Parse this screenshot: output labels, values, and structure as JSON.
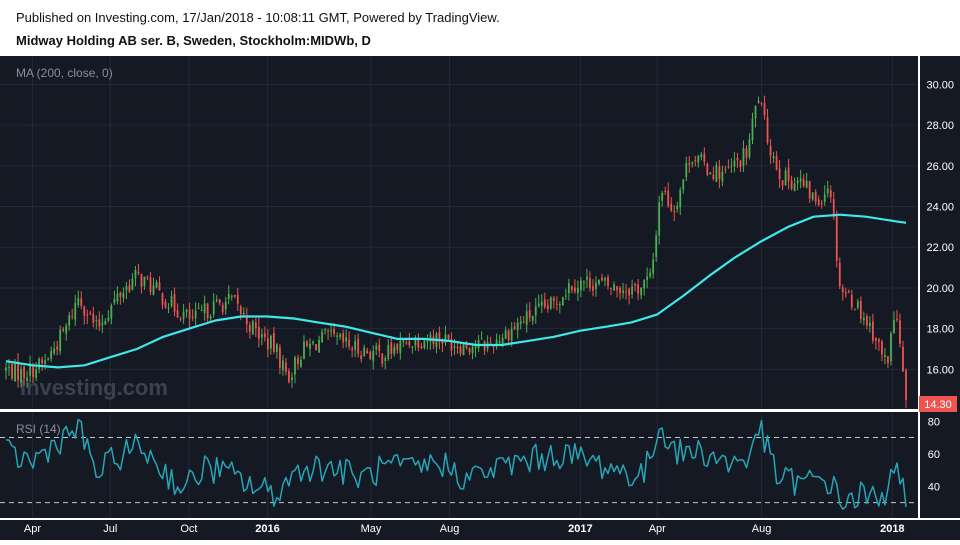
{
  "header": {
    "published": "Published on Investing.com, 17/Jan/2018 - 10:08:11 GMT, Powered by TradingView.",
    "symbol": "Midway Holding AB ser. B, Sweden, Stockholm:MIDWb, D"
  },
  "watermark": "Investing.com",
  "chart_data": [
    {
      "type": "candlestick",
      "indicator_label": "MA (200, close, 0)",
      "y_ticks": [
        16.0,
        18.0,
        20.0,
        22.0,
        24.0,
        26.0,
        28.0,
        30.0
      ],
      "ylim": [
        14.3,
        31.0
      ],
      "last_price": "14.30",
      "colors": {
        "up": "#4caf50",
        "down": "#ef5350",
        "ma": "#3ee7e8",
        "last_price_bg": "#ef5350",
        "background": "#151924"
      },
      "anchors": [
        {
          "date": "2015-03-01",
          "close": 16.0
        },
        {
          "date": "2015-03-20",
          "close": 15.8
        },
        {
          "date": "2015-04-15",
          "close": 16.3
        },
        {
          "date": "2015-05-10",
          "close": 18.0
        },
        {
          "date": "2015-05-25",
          "close": 19.6
        },
        {
          "date": "2015-06-15",
          "close": 18.0
        },
        {
          "date": "2015-07-10",
          "close": 19.6
        },
        {
          "date": "2015-08-01",
          "close": 20.6
        },
        {
          "date": "2015-08-20",
          "close": 20.0
        },
        {
          "date": "2015-09-15",
          "close": 19.0
        },
        {
          "date": "2015-10-05",
          "close": 18.4
        },
        {
          "date": "2015-10-25",
          "close": 19.0
        },
        {
          "date": "2015-11-20",
          "close": 19.4
        },
        {
          "date": "2015-12-15",
          "close": 18.0
        },
        {
          "date": "2016-01-10",
          "close": 17.0
        },
        {
          "date": "2016-01-25",
          "close": 15.6
        },
        {
          "date": "2016-02-10",
          "close": 16.9
        },
        {
          "date": "2016-03-10",
          "close": 17.6
        },
        {
          "date": "2016-04-15",
          "close": 17.0
        },
        {
          "date": "2016-05-15",
          "close": 16.7
        },
        {
          "date": "2016-06-15",
          "close": 17.4
        },
        {
          "date": "2016-07-15",
          "close": 17.6
        },
        {
          "date": "2016-08-15",
          "close": 17.2
        },
        {
          "date": "2016-09-15",
          "close": 17.2
        },
        {
          "date": "2016-10-10",
          "close": 17.9
        },
        {
          "date": "2016-11-05",
          "close": 18.7
        },
        {
          "date": "2016-12-01",
          "close": 19.2
        },
        {
          "date": "2016-12-20",
          "close": 20.2
        },
        {
          "date": "2017-01-15",
          "close": 20.3
        },
        {
          "date": "2017-02-10",
          "close": 20.0
        },
        {
          "date": "2017-03-10",
          "close": 20.0
        },
        {
          "date": "2017-03-25",
          "close": 20.5
        },
        {
          "date": "2017-04-05",
          "close": 25.0
        },
        {
          "date": "2017-04-20",
          "close": 23.8
        },
        {
          "date": "2017-05-10",
          "close": 26.6
        },
        {
          "date": "2017-06-01",
          "close": 25.8
        },
        {
          "date": "2017-06-20",
          "close": 25.6
        },
        {
          "date": "2017-07-15",
          "close": 26.6
        },
        {
          "date": "2017-07-28",
          "close": 29.5
        },
        {
          "date": "2017-08-10",
          "close": 27.0
        },
        {
          "date": "2017-08-25",
          "close": 25.4
        },
        {
          "date": "2017-09-15",
          "close": 25.2
        },
        {
          "date": "2017-10-05",
          "close": 24.2
        },
        {
          "date": "2017-10-20",
          "close": 25.2
        },
        {
          "date": "2017-11-01",
          "close": 20.0
        },
        {
          "date": "2017-11-20",
          "close": 19.2
        },
        {
          "date": "2017-12-10",
          "close": 17.8
        },
        {
          "date": "2017-12-25",
          "close": 16.2
        },
        {
          "date": "2018-01-05",
          "close": 19.0
        },
        {
          "date": "2018-01-12",
          "close": 16.2
        },
        {
          "date": "2018-01-17",
          "close": 14.3
        }
      ],
      "ma_200": [
        {
          "date": "2015-03-01",
          "value": 16.4
        },
        {
          "date": "2015-04-01",
          "value": 16.2
        },
        {
          "date": "2015-05-01",
          "value": 16.1
        },
        {
          "date": "2015-06-01",
          "value": 16.2
        },
        {
          "date": "2015-07-01",
          "value": 16.6
        },
        {
          "date": "2015-08-01",
          "value": 17.0
        },
        {
          "date": "2015-09-01",
          "value": 17.6
        },
        {
          "date": "2015-10-01",
          "value": 18.0
        },
        {
          "date": "2015-11-01",
          "value": 18.4
        },
        {
          "date": "2015-12-01",
          "value": 18.6
        },
        {
          "date": "2016-01-01",
          "value": 18.6
        },
        {
          "date": "2016-02-01",
          "value": 18.5
        },
        {
          "date": "2016-03-01",
          "value": 18.3
        },
        {
          "date": "2016-04-01",
          "value": 18.1
        },
        {
          "date": "2016-05-01",
          "value": 17.8
        },
        {
          "date": "2016-06-01",
          "value": 17.5
        },
        {
          "date": "2016-07-01",
          "value": 17.5
        },
        {
          "date": "2016-08-01",
          "value": 17.4
        },
        {
          "date": "2016-09-01",
          "value": 17.2
        },
        {
          "date": "2016-10-01",
          "value": 17.2
        },
        {
          "date": "2016-11-01",
          "value": 17.4
        },
        {
          "date": "2016-12-01",
          "value": 17.6
        },
        {
          "date": "2017-01-01",
          "value": 17.9
        },
        {
          "date": "2017-02-01",
          "value": 18.1
        },
        {
          "date": "2017-03-01",
          "value": 18.3
        },
        {
          "date": "2017-04-01",
          "value": 18.7
        },
        {
          "date": "2017-05-01",
          "value": 19.6
        },
        {
          "date": "2017-06-01",
          "value": 20.6
        },
        {
          "date": "2017-07-01",
          "value": 21.5
        },
        {
          "date": "2017-08-01",
          "value": 22.3
        },
        {
          "date": "2017-09-01",
          "value": 23.0
        },
        {
          "date": "2017-10-01",
          "value": 23.5
        },
        {
          "date": "2017-11-01",
          "value": 23.6
        },
        {
          "date": "2017-12-01",
          "value": 23.5
        },
        {
          "date": "2018-01-01",
          "value": 23.3
        },
        {
          "date": "2018-01-17",
          "value": 23.2
        }
      ]
    },
    {
      "type": "line",
      "indicator_label": "RSI (14)",
      "y_ticks": [
        40,
        60,
        80
      ],
      "ylim": [
        23,
        82
      ],
      "bands": [
        70,
        30
      ],
      "colors": {
        "line": "#26a5b5",
        "band": "#c8c8c8"
      },
      "values": [
        {
          "date": "2015-03-01",
          "value": 60
        },
        {
          "date": "2015-04-01",
          "value": 55
        },
        {
          "date": "2015-05-01",
          "value": 68
        },
        {
          "date": "2015-05-25",
          "value": 76
        },
        {
          "date": "2015-06-15",
          "value": 48
        },
        {
          "date": "2015-07-15",
          "value": 60
        },
        {
          "date": "2015-08-05",
          "value": 65
        },
        {
          "date": "2015-09-01",
          "value": 50
        },
        {
          "date": "2015-09-25",
          "value": 38
        },
        {
          "date": "2015-10-20",
          "value": 52
        },
        {
          "date": "2015-11-15",
          "value": 48
        },
        {
          "date": "2015-12-15",
          "value": 40
        },
        {
          "date": "2016-01-10",
          "value": 35
        },
        {
          "date": "2016-02-10",
          "value": 52
        },
        {
          "date": "2016-03-15",
          "value": 52
        },
        {
          "date": "2016-04-20",
          "value": 45
        },
        {
          "date": "2016-05-20",
          "value": 52
        },
        {
          "date": "2016-06-20",
          "value": 50
        },
        {
          "date": "2016-07-20",
          "value": 55
        },
        {
          "date": "2016-08-20",
          "value": 45
        },
        {
          "date": "2016-09-20",
          "value": 50
        },
        {
          "date": "2016-10-20",
          "value": 55
        },
        {
          "date": "2016-11-20",
          "value": 58
        },
        {
          "date": "2016-12-15",
          "value": 60
        },
        {
          "date": "2017-01-15",
          "value": 55
        },
        {
          "date": "2017-02-15",
          "value": 50
        },
        {
          "date": "2017-03-15",
          "value": 45
        },
        {
          "date": "2017-04-05",
          "value": 78
        },
        {
          "date": "2017-04-25",
          "value": 60
        },
        {
          "date": "2017-05-20",
          "value": 62
        },
        {
          "date": "2017-06-20",
          "value": 55
        },
        {
          "date": "2017-07-15",
          "value": 55
        },
        {
          "date": "2017-07-28",
          "value": 78
        },
        {
          "date": "2017-08-20",
          "value": 45
        },
        {
          "date": "2017-09-20",
          "value": 42
        },
        {
          "date": "2017-10-15",
          "value": 45
        },
        {
          "date": "2017-11-05",
          "value": 30
        },
        {
          "date": "2017-11-25",
          "value": 35
        },
        {
          "date": "2017-12-20",
          "value": 30
        },
        {
          "date": "2018-01-05",
          "value": 60
        },
        {
          "date": "2018-01-17",
          "value": 28
        }
      ]
    }
  ],
  "x_axis": {
    "ticks": [
      {
        "label": "Apr",
        "date": "2015-04-01"
      },
      {
        "label": "Jul",
        "date": "2015-07-01"
      },
      {
        "label": "Oct",
        "date": "2015-10-01"
      },
      {
        "label": "2016",
        "date": "2016-01-01",
        "bold": true
      },
      {
        "label": "May",
        "date": "2016-05-01"
      },
      {
        "label": "Aug",
        "date": "2016-08-01"
      },
      {
        "label": "2017",
        "date": "2017-01-01",
        "bold": true
      },
      {
        "label": "Apr",
        "date": "2017-04-01"
      },
      {
        "label": "Aug",
        "date": "2017-08-01"
      },
      {
        "label": "2018",
        "date": "2018-01-01",
        "bold": true
      }
    ],
    "range": [
      "2015-03-01",
      "2018-01-17"
    ]
  }
}
